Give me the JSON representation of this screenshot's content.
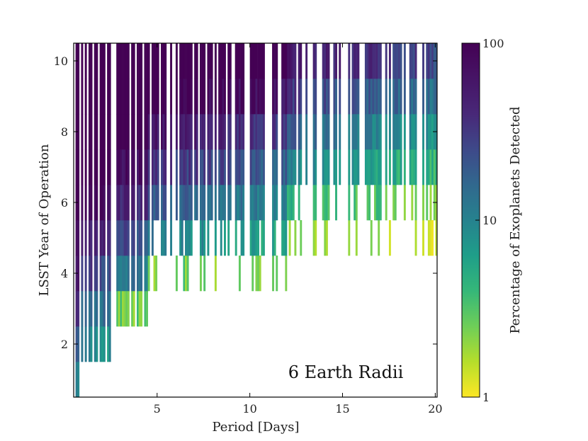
{
  "chart_data": {
    "type": "heatmap",
    "title": "",
    "xlabel": "Period [Days]",
    "ylabel": "LSST Year of Operation",
    "colorbar_label": "Percentage of Exoplanets Detected",
    "annotation": "6 Earth Radii",
    "xlim": [
      0.5,
      20.1
    ],
    "ylim": [
      0.5,
      10.5
    ],
    "x_ticks": [
      5,
      10,
      15,
      20
    ],
    "x_tick_labels": [
      "5",
      "10",
      "15",
      "20"
    ],
    "y_ticks": [
      2,
      4,
      6,
      8,
      10
    ],
    "y_tick_labels": [
      "2",
      "4",
      "6",
      "8",
      "10"
    ],
    "colorbar": {
      "scale": "log",
      "min": 1,
      "max": 100,
      "ticks": [
        1,
        10,
        100
      ],
      "tick_labels": [
        "1",
        "10",
        "100"
      ],
      "colormap": "viridis"
    },
    "grid": false,
    "years": [
      1,
      2,
      3,
      4,
      5,
      6,
      7,
      8,
      9,
      10
    ],
    "onset_zones": [
      {
        "period_range": [
          0.5,
          0.75
        ],
        "first_year": 1
      },
      {
        "period_range": [
          0.75,
          2.5
        ],
        "first_year": 2
      },
      {
        "period_range": [
          2.5,
          4.5
        ],
        "first_year": 3
      },
      {
        "period_range": [
          4.5,
          12.0
        ],
        "first_year": 4
      },
      {
        "period_range": [
          12.0,
          20.1
        ],
        "first_year": 5
      }
    ],
    "period_start": 0.5,
    "period_end": 20.1,
    "period_bin_width": 0.1
  }
}
